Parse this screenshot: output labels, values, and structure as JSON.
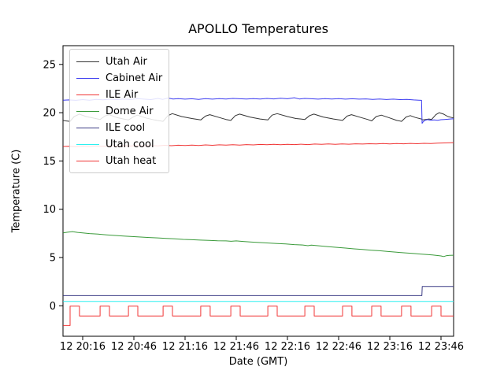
{
  "figure": {
    "title": "APOLLO Temperatures",
    "xlabel": "Date (GMT)",
    "ylabel": "Temperature (C)"
  },
  "chart_data": {
    "type": "line",
    "title": "APOLLO Temperatures",
    "xlabel": "Date (GMT)",
    "ylabel": "Temperature (C)",
    "x_unit": "minutes after 20:00 GMT on day 12 (labels show 'day hh:mm')",
    "xlim": [
      4.5,
      233.4
    ],
    "ylim": [
      -3.2,
      26.9
    ],
    "grid": false,
    "legend_position": "upper left",
    "xticks": [
      {
        "pos": 16,
        "label": "12 20:16"
      },
      {
        "pos": 46,
        "label": "12 20:46"
      },
      {
        "pos": 76,
        "label": "12 21:16"
      },
      {
        "pos": 106,
        "label": "12 21:46"
      },
      {
        "pos": 136,
        "label": "12 22:16"
      },
      {
        "pos": 166,
        "label": "12 22:46"
      },
      {
        "pos": 196,
        "label": "12 23:16"
      },
      {
        "pos": 226,
        "label": "12 23:46"
      }
    ],
    "yticks": [
      0,
      5,
      10,
      15,
      20,
      25
    ],
    "series": [
      {
        "name": "Utah Air",
        "color": "#333333",
        "points": [
          [
            4.5,
            19.2
          ],
          [
            6,
            19.15
          ],
          [
            8.6,
            19.1
          ],
          [
            11,
            19.6
          ],
          [
            14,
            19.85
          ],
          [
            18,
            19.6
          ],
          [
            22,
            19.45
          ],
          [
            26.2,
            19.3
          ],
          [
            29,
            19.65
          ],
          [
            31.5,
            19.8
          ],
          [
            36,
            19.5
          ],
          [
            40,
            19.35
          ],
          [
            42.8,
            19.25
          ],
          [
            46,
            19.6
          ],
          [
            48,
            19.75
          ],
          [
            53,
            19.45
          ],
          [
            58,
            19.25
          ],
          [
            63.1,
            19.1
          ],
          [
            66,
            19.7
          ],
          [
            68.5,
            19.9
          ],
          [
            74,
            19.6
          ],
          [
            80,
            19.4
          ],
          [
            85.2,
            19.25
          ],
          [
            88,
            19.65
          ],
          [
            90.5,
            19.8
          ],
          [
            96,
            19.5
          ],
          [
            100,
            19.3
          ],
          [
            102.8,
            19.2
          ],
          [
            105.5,
            19.7
          ],
          [
            108,
            19.85
          ],
          [
            114,
            19.55
          ],
          [
            120,
            19.35
          ],
          [
            124.5,
            19.25
          ],
          [
            127,
            19.75
          ],
          [
            130,
            19.9
          ],
          [
            136,
            19.6
          ],
          [
            141,
            19.4
          ],
          [
            146.2,
            19.3
          ],
          [
            149,
            19.7
          ],
          [
            151.5,
            19.85
          ],
          [
            157,
            19.55
          ],
          [
            163,
            19.35
          ],
          [
            168.3,
            19.2
          ],
          [
            171,
            19.65
          ],
          [
            173.5,
            19.8
          ],
          [
            179,
            19.5
          ],
          [
            183,
            19.3
          ],
          [
            185.4,
            19.15
          ],
          [
            188,
            19.6
          ],
          [
            191,
            19.75
          ],
          [
            196,
            19.45
          ],
          [
            200,
            19.2
          ],
          [
            202.9,
            19.1
          ],
          [
            205.5,
            19.55
          ],
          [
            208,
            19.7
          ],
          [
            211,
            19.5
          ],
          [
            214.5,
            19.35
          ],
          [
            215.3,
            19.25
          ],
          [
            217,
            19.3
          ],
          [
            219,
            19.35
          ],
          [
            220.5,
            19.3
          ],
          [
            223,
            19.8
          ],
          [
            225,
            20.0
          ],
          [
            227.5,
            19.85
          ],
          [
            230,
            19.6
          ],
          [
            233.4,
            19.45
          ]
        ]
      },
      {
        "name": "Cabinet Air",
        "color": "#3b3bf0",
        "points": [
          [
            4.5,
            21.3
          ],
          [
            8,
            21.32
          ],
          [
            12,
            21.28
          ],
          [
            16,
            21.35
          ],
          [
            20,
            21.3
          ],
          [
            24,
            21.38
          ],
          [
            28,
            21.33
          ],
          [
            32,
            21.4
          ],
          [
            36,
            21.35
          ],
          [
            40,
            21.42
          ],
          [
            44,
            21.38
          ],
          [
            48,
            21.45
          ],
          [
            52,
            21.4
          ],
          [
            56,
            21.35
          ],
          [
            60,
            21.48
          ],
          [
            63,
            21.38
          ],
          [
            66,
            21.52
          ],
          [
            69,
            21.42
          ],
          [
            72,
            21.45
          ],
          [
            76,
            21.4
          ],
          [
            80,
            21.44
          ],
          [
            84,
            21.38
          ],
          [
            88,
            21.46
          ],
          [
            92,
            21.4
          ],
          [
            96,
            21.45
          ],
          [
            100,
            21.42
          ],
          [
            104,
            21.48
          ],
          [
            108,
            21.44
          ],
          [
            112,
            21.42
          ],
          [
            116,
            21.46
          ],
          [
            120,
            21.42
          ],
          [
            124,
            21.48
          ],
          [
            128,
            21.43
          ],
          [
            132,
            21.5
          ],
          [
            136,
            21.44
          ],
          [
            140,
            21.55
          ],
          [
            143,
            21.42
          ],
          [
            146,
            21.48
          ],
          [
            150,
            21.44
          ],
          [
            154,
            21.4
          ],
          [
            158,
            21.46
          ],
          [
            162,
            21.42
          ],
          [
            166,
            21.45
          ],
          [
            170,
            21.4
          ],
          [
            174,
            21.44
          ],
          [
            178,
            21.4
          ],
          [
            182,
            21.43
          ],
          [
            186,
            21.38
          ],
          [
            190,
            21.42
          ],
          [
            194,
            21.36
          ],
          [
            198,
            21.4
          ],
          [
            202,
            21.35
          ],
          [
            206,
            21.38
          ],
          [
            210,
            21.32
          ],
          [
            213,
            21.3
          ],
          [
            214.6,
            21.28
          ],
          [
            214.9,
            18.9
          ],
          [
            215.5,
            19.05
          ],
          [
            216.5,
            19.2
          ],
          [
            218,
            19.28
          ],
          [
            220,
            19.22
          ],
          [
            222,
            19.26
          ],
          [
            224,
            19.22
          ],
          [
            226,
            19.27
          ],
          [
            228,
            19.3
          ],
          [
            230,
            19.32
          ],
          [
            233.4,
            19.38
          ]
        ]
      },
      {
        "name": "ILE Air",
        "color": "#f03434",
        "points": [
          [
            4.5,
            16.5
          ],
          [
            8,
            16.52
          ],
          [
            12,
            16.48
          ],
          [
            16,
            16.53
          ],
          [
            20,
            16.5
          ],
          [
            24,
            16.55
          ],
          [
            28,
            16.52
          ],
          [
            32,
            16.57
          ],
          [
            36,
            16.53
          ],
          [
            40,
            16.58
          ],
          [
            44,
            16.55
          ],
          [
            48,
            16.6
          ],
          [
            52,
            16.56
          ],
          [
            56,
            16.6
          ],
          [
            60,
            16.57
          ],
          [
            64,
            16.62
          ],
          [
            68,
            16.58
          ],
          [
            72,
            16.63
          ],
          [
            76,
            16.6
          ],
          [
            80,
            16.65
          ],
          [
            84,
            16.6
          ],
          [
            88,
            16.66
          ],
          [
            92,
            16.62
          ],
          [
            96,
            16.67
          ],
          [
            100,
            16.64
          ],
          [
            104,
            16.68
          ],
          [
            108,
            16.65
          ],
          [
            112,
            16.7
          ],
          [
            116,
            16.66
          ],
          [
            120,
            16.71
          ],
          [
            124,
            16.68
          ],
          [
            128,
            16.72
          ],
          [
            132,
            16.69
          ],
          [
            136,
            16.73
          ],
          [
            140,
            16.7
          ],
          [
            144,
            16.74
          ],
          [
            148,
            16.7
          ],
          [
            152,
            16.75
          ],
          [
            156,
            16.72
          ],
          [
            160,
            16.76
          ],
          [
            164,
            16.73
          ],
          [
            168,
            16.77
          ],
          [
            172,
            16.74
          ],
          [
            176,
            16.78
          ],
          [
            180,
            16.75
          ],
          [
            184,
            16.79
          ],
          [
            188,
            16.76
          ],
          [
            192,
            16.8
          ],
          [
            196,
            16.77
          ],
          [
            200,
            16.81
          ],
          [
            204,
            16.78
          ],
          [
            208,
            16.82
          ],
          [
            212,
            16.79
          ],
          [
            216,
            16.83
          ],
          [
            220,
            16.8
          ],
          [
            224,
            16.85
          ],
          [
            228,
            16.87
          ],
          [
            233.4,
            16.9
          ]
        ]
      },
      {
        "name": "Dome Air",
        "color": "#3a9a3a",
        "points": [
          [
            4.5,
            7.55
          ],
          [
            7,
            7.62
          ],
          [
            10,
            7.68
          ],
          [
            13,
            7.6
          ],
          [
            16,
            7.55
          ],
          [
            20,
            7.48
          ],
          [
            25,
            7.42
          ],
          [
            30,
            7.35
          ],
          [
            35,
            7.28
          ],
          [
            40,
            7.22
          ],
          [
            45,
            7.17
          ],
          [
            50,
            7.12
          ],
          [
            55,
            7.07
          ],
          [
            60,
            7.03
          ],
          [
            65,
            6.98
          ],
          [
            70,
            6.93
          ],
          [
            75,
            6.88
          ],
          [
            80,
            6.84
          ],
          [
            85,
            6.8
          ],
          [
            90,
            6.78
          ],
          [
            95,
            6.74
          ],
          [
            100,
            6.72
          ],
          [
            103,
            6.68
          ],
          [
            106,
            6.72
          ],
          [
            110,
            6.66
          ],
          [
            115,
            6.6
          ],
          [
            120,
            6.55
          ],
          [
            125,
            6.5
          ],
          [
            130,
            6.44
          ],
          [
            135,
            6.4
          ],
          [
            140,
            6.34
          ],
          [
            145,
            6.3
          ],
          [
            148,
            6.22
          ],
          [
            150,
            6.28
          ],
          [
            155,
            6.2
          ],
          [
            160,
            6.12
          ],
          [
            165,
            6.05
          ],
          [
            170,
            5.98
          ],
          [
            175,
            5.9
          ],
          [
            180,
            5.83
          ],
          [
            185,
            5.76
          ],
          [
            190,
            5.7
          ],
          [
            195,
            5.62
          ],
          [
            200,
            5.55
          ],
          [
            205,
            5.48
          ],
          [
            210,
            5.42
          ],
          [
            214,
            5.36
          ],
          [
            218,
            5.3
          ],
          [
            221,
            5.26
          ],
          [
            224,
            5.2
          ],
          [
            226,
            5.16
          ],
          [
            227.5,
            5.1
          ],
          [
            229,
            5.18
          ],
          [
            231,
            5.22
          ],
          [
            233.4,
            5.24
          ]
        ]
      },
      {
        "name": "ILE cool",
        "color": "#3c3c85",
        "points": [
          [
            4.5,
            1.05
          ],
          [
            214.8,
            1.05
          ],
          [
            215,
            2.0
          ],
          [
            233.4,
            2.0
          ]
        ]
      },
      {
        "name": "Utah cool",
        "color": "#2ef0f0",
        "points": [
          [
            4.5,
            0.45
          ],
          [
            233.4,
            0.45
          ]
        ]
      },
      {
        "name": "Utah heat",
        "color": "#f03434",
        "points": [
          [
            4.5,
            -2.05
          ],
          [
            8.6,
            -2.05
          ],
          [
            8.6,
            -0.03
          ],
          [
            14.1,
            -0.03
          ],
          [
            14.1,
            -1.05
          ],
          [
            26.2,
            -1.05
          ],
          [
            26.2,
            -0.03
          ],
          [
            31.7,
            -0.03
          ],
          [
            31.7,
            -1.05
          ],
          [
            42.8,
            -1.05
          ],
          [
            42.8,
            -0.03
          ],
          [
            48.3,
            -0.03
          ],
          [
            48.3,
            -1.05
          ],
          [
            63.1,
            -1.05
          ],
          [
            63.1,
            -0.03
          ],
          [
            68.6,
            -0.03
          ],
          [
            68.6,
            -1.05
          ],
          [
            85.2,
            -1.05
          ],
          [
            85.2,
            -0.03
          ],
          [
            90.7,
            -0.03
          ],
          [
            90.7,
            -1.05
          ],
          [
            102.8,
            -1.05
          ],
          [
            102.8,
            -0.03
          ],
          [
            108.3,
            -0.03
          ],
          [
            108.3,
            -1.05
          ],
          [
            124.5,
            -1.05
          ],
          [
            124.5,
            -0.03
          ],
          [
            130,
            -0.03
          ],
          [
            130,
            -1.05
          ],
          [
            146.2,
            -1.05
          ],
          [
            146.2,
            -0.03
          ],
          [
            151.7,
            -0.03
          ],
          [
            151.7,
            -1.05
          ],
          [
            168.3,
            -1.05
          ],
          [
            168.3,
            -0.03
          ],
          [
            173.8,
            -0.03
          ],
          [
            173.8,
            -1.05
          ],
          [
            185.4,
            -1.05
          ],
          [
            185.4,
            -0.03
          ],
          [
            190.9,
            -0.03
          ],
          [
            190.9,
            -1.05
          ],
          [
            202.9,
            -1.05
          ],
          [
            202.9,
            -0.03
          ],
          [
            208.4,
            -0.03
          ],
          [
            208.4,
            -1.05
          ],
          [
            220.5,
            -1.05
          ],
          [
            220.5,
            -0.03
          ],
          [
            226,
            -0.03
          ],
          [
            226,
            -1.05
          ],
          [
            233.4,
            -1.05
          ]
        ]
      }
    ]
  }
}
